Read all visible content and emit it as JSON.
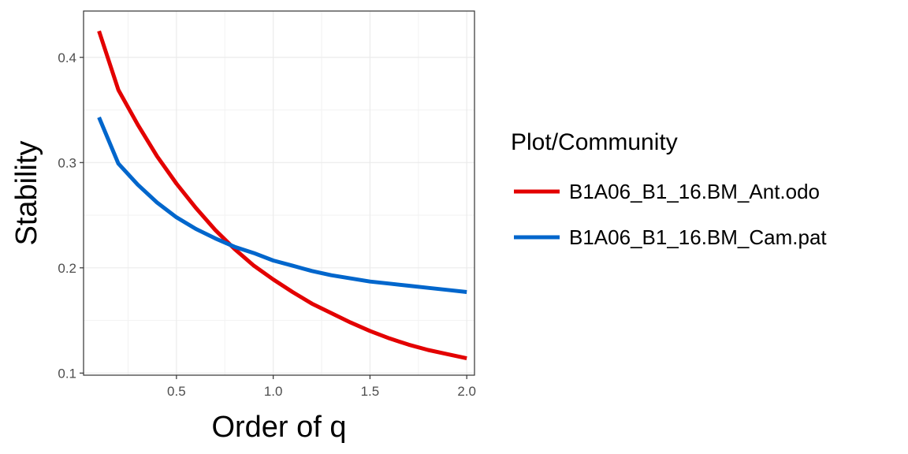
{
  "chart_data": {
    "type": "line",
    "title": "",
    "xlabel": "Order of q",
    "ylabel": "Stability",
    "xlim": [
      0.02,
      2.04
    ],
    "ylim": [
      0.098,
      0.444
    ],
    "x_ticks": [
      0.5,
      1.0,
      1.5,
      2.0
    ],
    "x_tick_labels": [
      "0.5",
      "1.0",
      "1.5",
      "2.0"
    ],
    "y_ticks": [
      0.1,
      0.2,
      0.3,
      0.4
    ],
    "y_tick_labels": [
      "0.1",
      "0.2",
      "0.3",
      "0.4"
    ],
    "grid": true,
    "legend": {
      "title": "Plot/Community",
      "position": "right"
    },
    "x": [
      0.1,
      0.2,
      0.3,
      0.4,
      0.5,
      0.6,
      0.7,
      0.8,
      0.9,
      1.0,
      1.1,
      1.2,
      1.3,
      1.4,
      1.5,
      1.6,
      1.7,
      1.8,
      1.9,
      2.0
    ],
    "series": [
      {
        "name": "B1A06_B1_16.BM_Ant.odo",
        "color": "#e30000",
        "values": [
          0.425,
          0.369,
          0.336,
          0.306,
          0.28,
          0.257,
          0.236,
          0.218,
          0.202,
          0.189,
          0.177,
          0.166,
          0.157,
          0.148,
          0.14,
          0.133,
          0.127,
          0.122,
          0.118,
          0.114
        ]
      },
      {
        "name": "B1A06_B1_16.BM_Cam.pat",
        "color": "#0066cc",
        "values": [
          0.343,
          0.299,
          0.279,
          0.262,
          0.248,
          0.237,
          0.228,
          0.22,
          0.214,
          0.207,
          0.202,
          0.197,
          0.193,
          0.19,
          0.187,
          0.185,
          0.183,
          0.181,
          0.179,
          0.177
        ]
      }
    ]
  }
}
